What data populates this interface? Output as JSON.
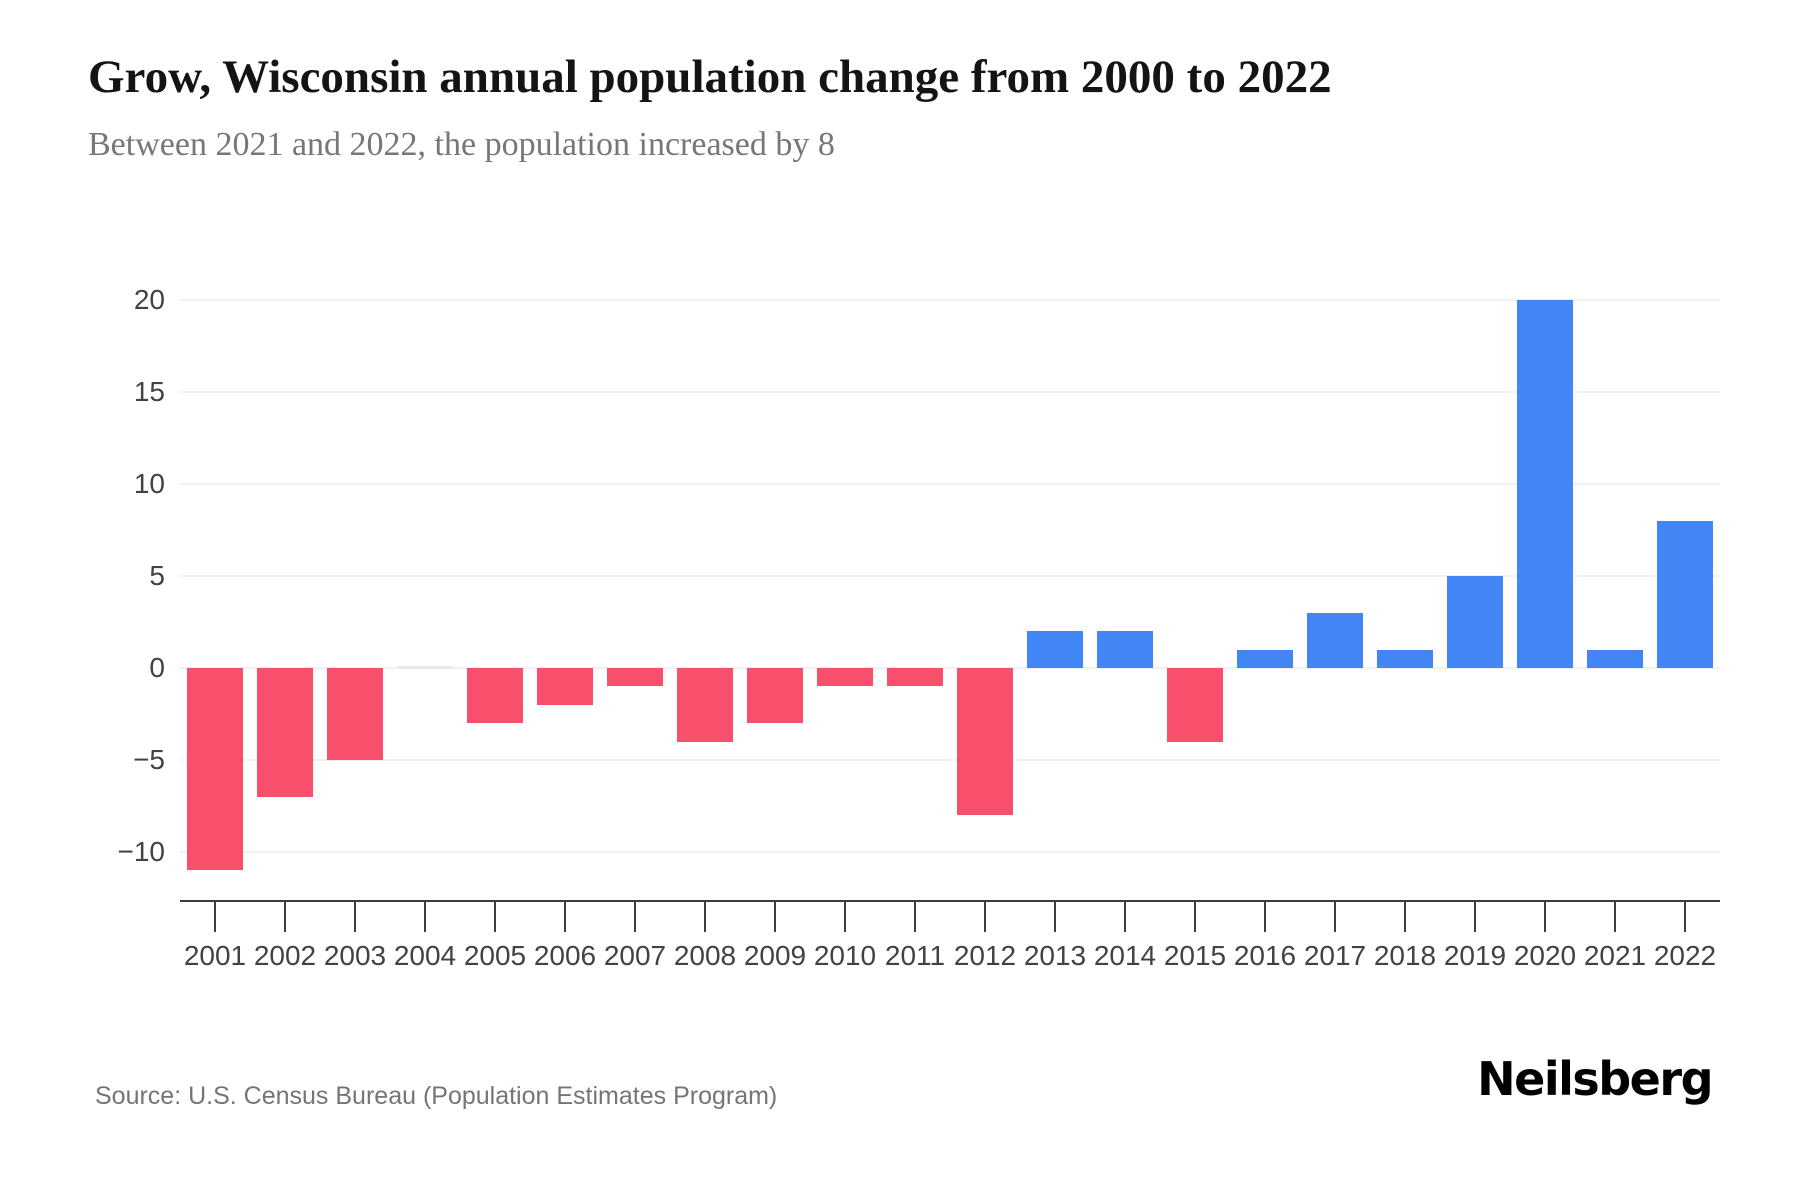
{
  "header": {
    "title": "Grow, Wisconsin annual population change from 2000 to 2022",
    "subtitle": "Between 2021 and 2022, the population increased by 8"
  },
  "footer": {
    "source": "Source: U.S. Census Bureau (Population Estimates Program)",
    "brand": "Neilsberg"
  },
  "chart_data": {
    "type": "bar",
    "title": "Grow, Wisconsin annual population change from 2000 to 2022",
    "subtitle": "Between 2021 and 2022, the population increased by 8",
    "categories": [
      "2001",
      "2002",
      "2003",
      "2004",
      "2005",
      "2006",
      "2007",
      "2008",
      "2009",
      "2010",
      "2011",
      "2012",
      "2013",
      "2014",
      "2015",
      "2016",
      "2017",
      "2018",
      "2019",
      "2020",
      "2021",
      "2022"
    ],
    "values": [
      -11,
      -7,
      -5,
      0,
      -3,
      -2,
      -1,
      -4,
      -3,
      -1,
      -1,
      -8,
      2,
      2,
      -4,
      1,
      3,
      1,
      5,
      20,
      1,
      8
    ],
    "xlabel": "",
    "ylabel": "",
    "ylim": [
      -12.5,
      21.5
    ],
    "yticks": [
      {
        "value": 20,
        "label": "20"
      },
      {
        "value": 15,
        "label": "15"
      },
      {
        "value": 10,
        "label": "10"
      },
      {
        "value": 5,
        "label": "5"
      },
      {
        "value": 0,
        "label": "0"
      },
      {
        "value": -5,
        "label": "−5"
      },
      {
        "value": -10,
        "label": "−10"
      }
    ],
    "grid": "horizontal",
    "legend": "none",
    "colors": {
      "positive_bar": "#4285f4",
      "negative_bar": "#f8506c",
      "zero_bar": "#e9e9e9",
      "gridline": "#f1f1f1",
      "axis": "#3d3d3d",
      "axis_label": "#424242",
      "title": "#141414",
      "subtitle": "#777777",
      "source": "#757575",
      "brand": "#000000",
      "background": "#ffffff"
    }
  }
}
